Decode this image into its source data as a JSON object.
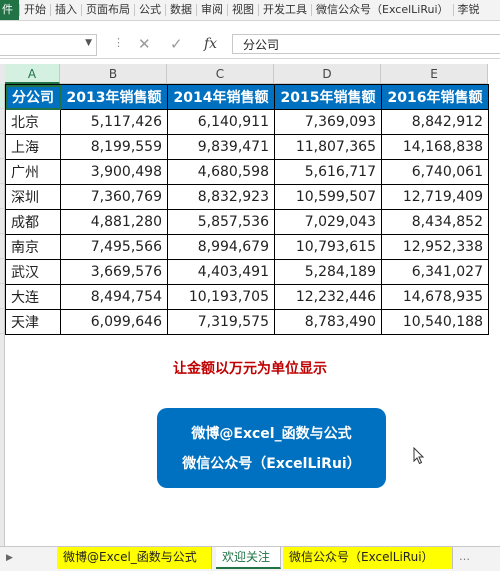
{
  "ribbon": {
    "file_label": "件",
    "tabs": [
      "开始",
      "插入",
      "页面布局",
      "公式",
      "数据",
      "审阅",
      "视图",
      "开发工具",
      "微信公众号（ExcelLiRui）",
      "李锐"
    ]
  },
  "formula_bar": {
    "name_box": "",
    "fx_label": "fx",
    "content": "分公司"
  },
  "columns": [
    "A",
    "B",
    "C",
    "D",
    "E"
  ],
  "active_column": "A",
  "table": {
    "headers": [
      "分公司",
      "2013年销售额",
      "2014年销售额",
      "2015年销售额",
      "2016年销售额"
    ],
    "rows": [
      [
        "北京",
        "5,117,426",
        "6,140,911",
        "7,369,093",
        "8,842,912"
      ],
      [
        "上海",
        "8,199,559",
        "9,839,471",
        "11,807,365",
        "14,168,838"
      ],
      [
        "广州",
        "3,900,498",
        "4,680,598",
        "5,616,717",
        "6,740,061"
      ],
      [
        "深圳",
        "7,360,769",
        "8,832,923",
        "10,599,507",
        "12,719,409"
      ],
      [
        "成都",
        "4,881,280",
        "5,857,536",
        "7,029,043",
        "8,434,852"
      ],
      [
        "南京",
        "7,495,566",
        "8,994,679",
        "10,793,615",
        "12,952,338"
      ],
      [
        "武汉",
        "3,669,576",
        "4,403,491",
        "5,284,189",
        "6,341,027"
      ],
      [
        "大连",
        "8,494,754",
        "10,193,705",
        "12,232,446",
        "14,678,935"
      ],
      [
        "天津",
        "6,099,646",
        "7,319,575",
        "8,783,490",
        "10,540,188"
      ]
    ]
  },
  "note": "让金额以万元为单位显示",
  "promo": {
    "line1": "微博@Excel_函数与公式",
    "line2": "微信公众号（ExcelLiRui）"
  },
  "sheets": [
    {
      "label": "微博@Excel_函数与公式",
      "style": "yellow"
    },
    {
      "label": "欢迎关注",
      "style": "active"
    },
    {
      "label": "微信公众号（ExcelLiRui）",
      "style": "yellow"
    }
  ],
  "colors": {
    "accent": "#217346",
    "header_fill": "#0070c0",
    "note_red": "#c00000",
    "tab_yellow": "#ffff00"
  },
  "icons": [
    "dropdown-arrow-icon",
    "cancel-icon",
    "enter-icon",
    "function-icon",
    "mouse-pointer-icon",
    "sheet-next-arrow-icon",
    "more-sheets-icon"
  ]
}
